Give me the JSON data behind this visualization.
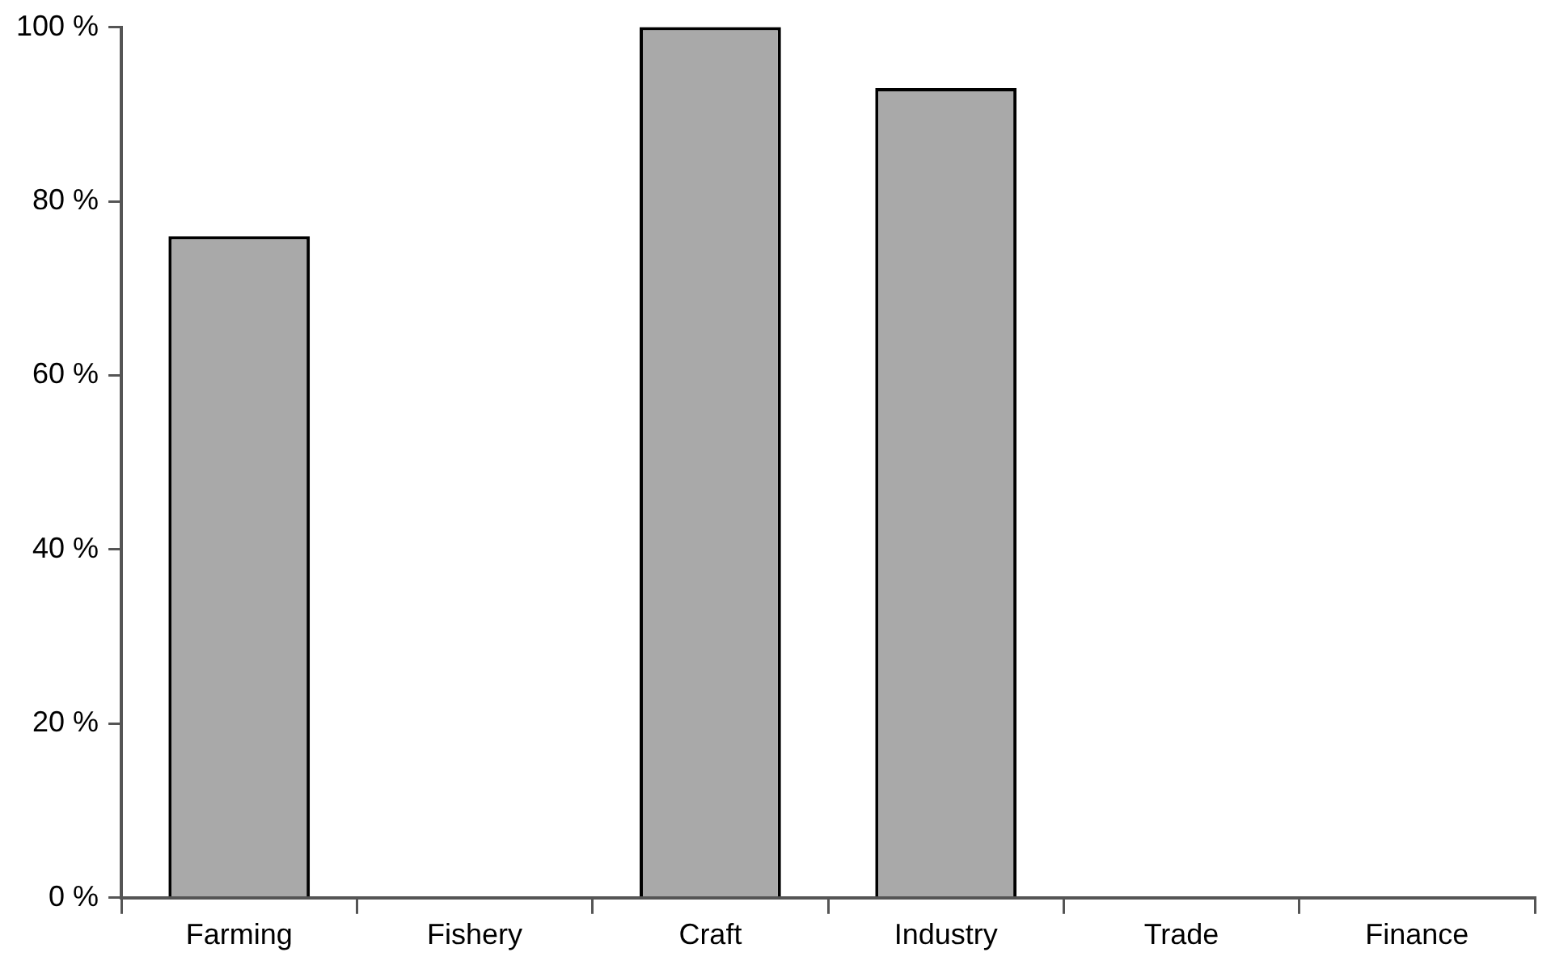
{
  "chart_data": {
    "type": "bar",
    "categories": [
      "Farming",
      "Fishery",
      "Craft",
      "Industry",
      "Trade",
      "Finance"
    ],
    "values": [
      76,
      0,
      100,
      93,
      0,
      0
    ],
    "color": "#a9a9a9",
    "ylim": [
      0,
      100
    ],
    "yticks": [
      {
        "value": 0,
        "label": "0 %"
      },
      {
        "value": 20,
        "label": "20 %"
      },
      {
        "value": 40,
        "label": "40 %"
      },
      {
        "value": 60,
        "label": "60 %"
      },
      {
        "value": 80,
        "label": "80 %"
      },
      {
        "value": 100,
        "label": "100 %"
      }
    ],
    "grid": false,
    "legend": false
  }
}
